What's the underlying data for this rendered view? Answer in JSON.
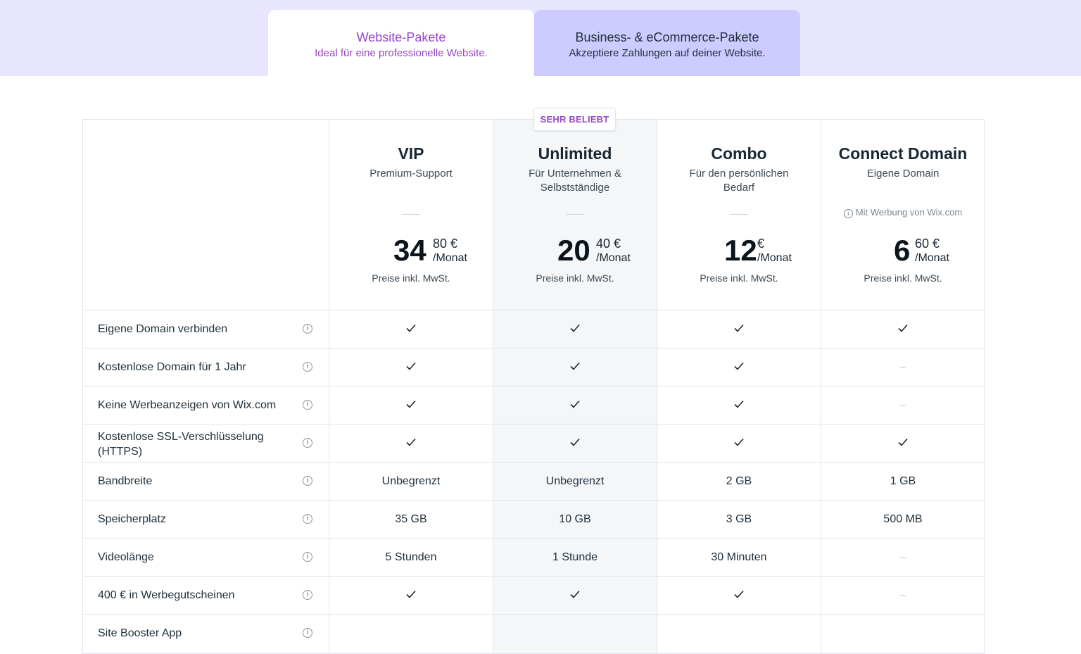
{
  "tabs": [
    {
      "title": "Website-Pakete",
      "subtitle": "Ideal für eine professionelle Website."
    },
    {
      "title": "Business- & eCommerce-Pakete",
      "subtitle": "Akzeptiere Zahlungen auf deiner Website."
    }
  ],
  "badge": "SEHR BELIEBT",
  "plans": [
    {
      "name": "VIP",
      "subtitle": "Premium-Support",
      "price_main": "34",
      "price_cents": "80 €",
      "per": "/Monat",
      "tax": "Preise inkl. MwSt."
    },
    {
      "name": "Unlimited",
      "subtitle": "Für Unternehmen & Selbstständige",
      "price_main": "20",
      "price_cents": "40 €",
      "per": "/Monat",
      "tax": "Preise inkl. MwSt."
    },
    {
      "name": "Combo",
      "subtitle": "Für den persönlichen Bedarf",
      "price_main": "12",
      "price_cents": "€",
      "per": "/Monat",
      "tax": "Preise inkl. MwSt."
    },
    {
      "name": "Connect Domain",
      "subtitle": "Eigene Domain",
      "ad_note": "Mit Werbung von Wix.com",
      "price_main": "6",
      "price_cents": "60 €",
      "per": "/Monat",
      "tax": "Preise inkl. MwSt."
    }
  ],
  "features": [
    {
      "label": "Eigene Domain verbinden",
      "values": [
        "check",
        "check",
        "check",
        "check"
      ]
    },
    {
      "label": "Kostenlose Domain für 1 Jahr",
      "values": [
        "check",
        "check",
        "check",
        "none"
      ]
    },
    {
      "label": "Keine Werbeanzeigen von Wix.com",
      "values": [
        "check",
        "check",
        "check",
        "none"
      ]
    },
    {
      "label": "Kostenlose SSL-Verschlüsselung (HTTPS)",
      "values": [
        "check",
        "check",
        "check",
        "check"
      ]
    },
    {
      "label": "Bandbreite",
      "values": [
        "Unbegrenzt",
        "Unbegrenzt",
        "2 GB",
        "1 GB"
      ]
    },
    {
      "label": "Speicherplatz",
      "values": [
        "35 GB",
        "10 GB",
        "3 GB",
        "500 MB"
      ]
    },
    {
      "label": "Videolänge",
      "values": [
        "5 Stunden",
        "1 Stunde",
        "30 Minuten",
        "none"
      ]
    },
    {
      "label": "400 € in Werbegutscheinen",
      "values": [
        "check",
        "check",
        "check",
        "none"
      ]
    },
    {
      "label": "Site Booster App",
      "values": [
        "",
        "",
        "",
        ""
      ]
    }
  ],
  "symbols": {
    "none": "–",
    "info": "i"
  },
  "colors": {
    "accent": "#9a46c8",
    "band": "#e8e6ff",
    "inactive_tab": "#cdcbff",
    "highlight_column": "#f4f6f8"
  }
}
